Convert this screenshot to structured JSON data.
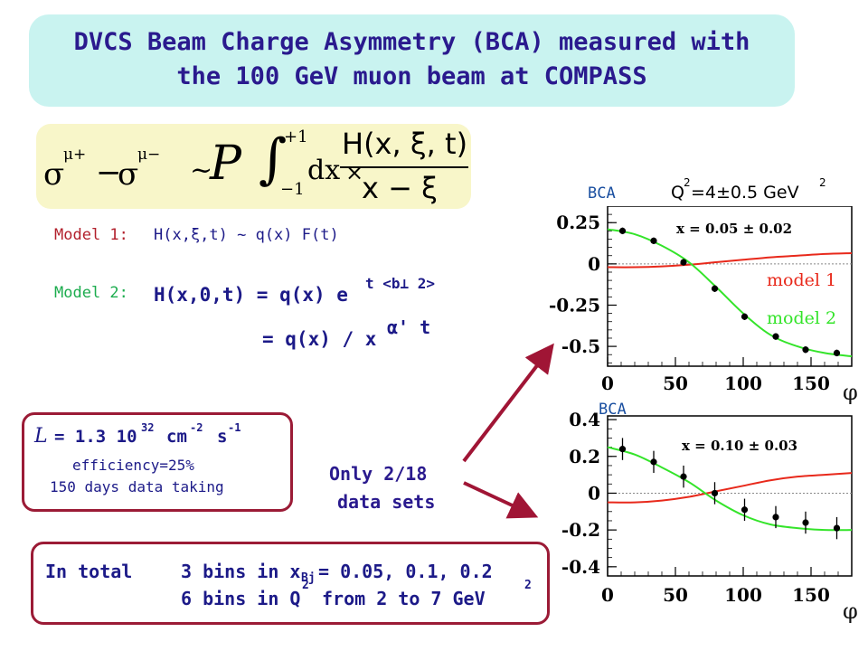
{
  "title": {
    "line1": "DVCS Beam Charge Asymmetry (BCA) measured with",
    "line2": "the 100 GeV muon beam at COMPASS"
  },
  "formula": {
    "sigma": "σ",
    "mu_plus": "μ+",
    "mu_minus": "μ−",
    "minus": "−",
    "sim": "~",
    "P": "P",
    "int_upper": "+1",
    "int_lower": "−1",
    "dx": "dx",
    "numerator": "H(x, ξ, t)",
    "denominator": "x − ξ"
  },
  "models": {
    "model1_label": "Model 1:",
    "model1_text": "H(x,ξ,t) ~ q(x) F(t)",
    "model2_label": "Model 2:",
    "model2_line1": "H(x,0,t) = q(x) e",
    "model2_exp": "t <b⊥ 2>",
    "model2_line2": "= q(x) / x",
    "model2_line2_exp": "α'  t"
  },
  "luminosity": {
    "L": "L",
    "text": "= 1.3 10",
    "exp32": "32",
    "cm": "cm",
    "exp_m2": "-2",
    "s": "s",
    "exp_m1": "-1",
    "efficiency": "efficiency=25%",
    "days": "150 days data taking"
  },
  "only": {
    "line1": "Only 2/18",
    "line2": "data sets"
  },
  "total": {
    "label": "In total",
    "line1_a": "3 bins in x",
    "line1_sub": "Bj",
    "line1_b": "= 0.05, 0.1, 0.2",
    "line2_a": "6 bins in Q",
    "line2_sup": "2",
    "line2_b": "from 2 to 7 GeV",
    "line2_sup2": "2"
  },
  "plot1_header": {
    "bca": "BCA",
    "q2": "Q",
    "q2_sup": "2",
    "q2_val": "=4±0.5 GeV",
    "q2_sup2": "2"
  },
  "plot2_header": {
    "bca": "BCA"
  },
  "phi_label": "φ",
  "colors": {
    "model1": "#e8291b",
    "model2": "#34e42a",
    "arrow": "#a01535",
    "title_bg": "#c9f3f0",
    "formula_bg": "#f8f6c9"
  },
  "chart_data": [
    {
      "type": "scatter",
      "title": "",
      "xlabel": "φ",
      "ylabel": "BCA",
      "xlim": [
        0,
        180
      ],
      "ylim": [
        -0.62,
        0.35
      ],
      "xticks": [
        0,
        50,
        100,
        150
      ],
      "yticks": [
        0.25,
        0,
        -0.25,
        -0.5
      ],
      "ytick_labels": [
        "0.25",
        "0",
        "-0.25",
        "-0.5"
      ],
      "annotation": "x = 0.05 ± 0.02",
      "series": [
        {
          "name": "model 1",
          "kind": "line",
          "x": [
            0,
            20,
            40,
            60,
            80,
            100,
            120,
            140,
            160,
            180
          ],
          "y": [
            -0.02,
            -0.02,
            -0.015,
            -0.005,
            0.01,
            0.025,
            0.04,
            0.05,
            0.06,
            0.065
          ]
        },
        {
          "name": "model 2",
          "kind": "line",
          "x": [
            0,
            20,
            40,
            60,
            80,
            100,
            120,
            140,
            160,
            180
          ],
          "y": [
            0.21,
            0.18,
            0.11,
            0.01,
            -0.14,
            -0.3,
            -0.43,
            -0.5,
            -0.54,
            -0.56
          ]
        },
        {
          "name": "data",
          "kind": "points",
          "x": [
            11,
            34,
            56,
            79,
            101,
            124,
            146,
            169
          ],
          "y": [
            0.2,
            0.14,
            0.01,
            -0.15,
            -0.32,
            -0.44,
            -0.52,
            -0.54
          ],
          "err": [
            0.02,
            0.02,
            0.02,
            0.02,
            0.02,
            0.02,
            0.02,
            0.02
          ]
        }
      ]
    },
    {
      "type": "scatter",
      "title": "",
      "xlabel": "φ",
      "ylabel": "BCA",
      "xlim": [
        0,
        180
      ],
      "ylim": [
        -0.45,
        0.42
      ],
      "xticks": [
        0,
        50,
        100,
        150
      ],
      "yticks": [
        0.4,
        0.2,
        0,
        -0.2,
        -0.4
      ],
      "ytick_labels": [
        "0.4",
        "0.2",
        "0",
        "-0.2",
        "-0.4"
      ],
      "annotation": "x = 0.10 ± 0.03",
      "series": [
        {
          "name": "model 1",
          "kind": "line",
          "x": [
            0,
            20,
            40,
            60,
            80,
            100,
            120,
            140,
            160,
            180
          ],
          "y": [
            -0.05,
            -0.05,
            -0.04,
            -0.02,
            0.01,
            0.04,
            0.07,
            0.09,
            0.1,
            0.11
          ]
        },
        {
          "name": "model 2",
          "kind": "line",
          "x": [
            0,
            20,
            40,
            60,
            80,
            100,
            120,
            140,
            160,
            180
          ],
          "y": [
            0.25,
            0.21,
            0.14,
            0.06,
            -0.04,
            -0.12,
            -0.17,
            -0.19,
            -0.2,
            -0.2
          ]
        },
        {
          "name": "data",
          "kind": "points",
          "x": [
            11,
            34,
            56,
            79,
            101,
            124,
            146,
            169
          ],
          "y": [
            0.24,
            0.17,
            0.09,
            0.0,
            -0.09,
            -0.13,
            -0.16,
            -0.19
          ],
          "err": [
            0.06,
            0.06,
            0.06,
            0.06,
            0.06,
            0.06,
            0.06,
            0.06
          ]
        }
      ]
    }
  ]
}
